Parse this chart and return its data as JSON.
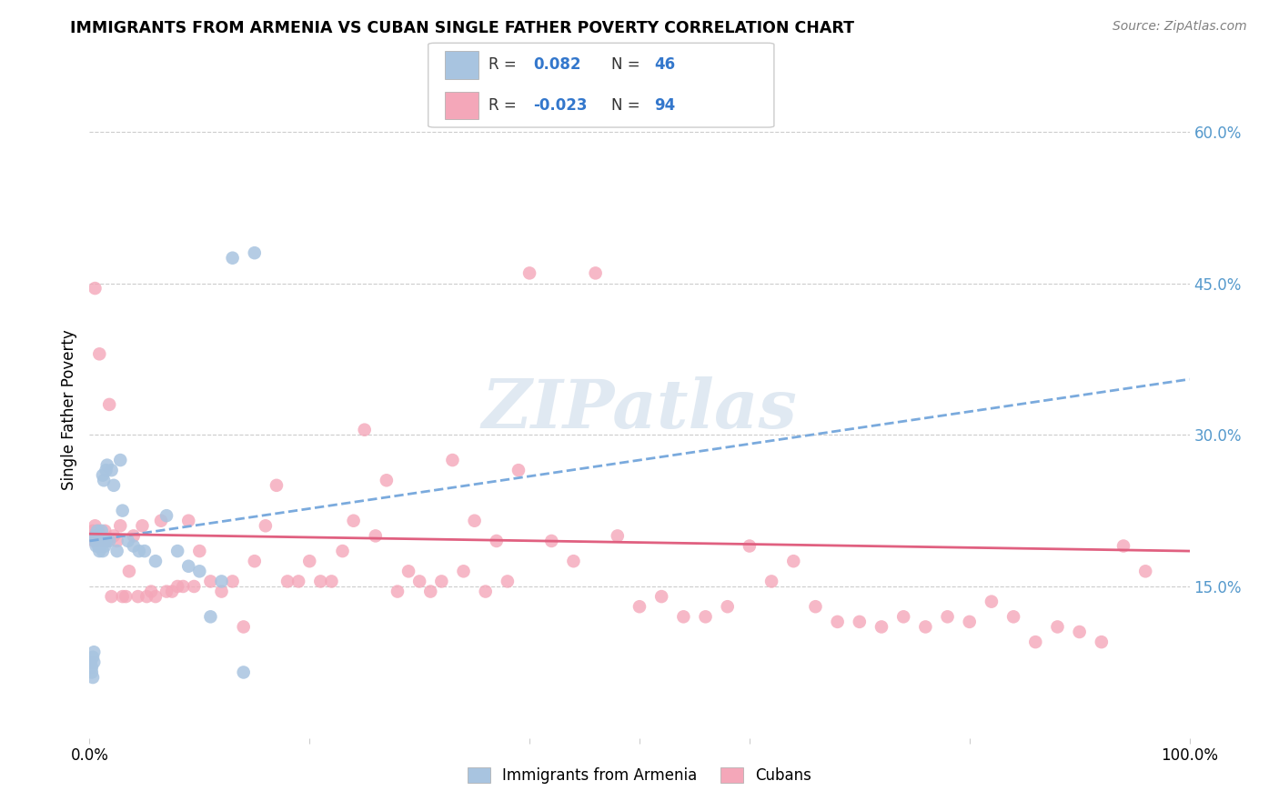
{
  "title": "IMMIGRANTS FROM ARMENIA VS CUBAN SINGLE FATHER POVERTY CORRELATION CHART",
  "source": "Source: ZipAtlas.com",
  "ylabel": "Single Father Poverty",
  "xlim": [
    0.0,
    1.0
  ],
  "ylim": [
    0.0,
    0.65
  ],
  "yticks_right": [
    0.15,
    0.3,
    0.45,
    0.6
  ],
  "ytick_right_labels": [
    "15.0%",
    "30.0%",
    "45.0%",
    "60.0%"
  ],
  "color_armenia": "#a8c4e0",
  "color_cuba": "#f4a7b9",
  "trendline_armenia_color": "#7aaadd",
  "trendline_cuba_color": "#e06080",
  "watermark": "ZIPatlas",
  "background_color": "#ffffff",
  "grid_color": "#cccccc",
  "armenia_x": [
    0.001,
    0.002,
    0.002,
    0.003,
    0.003,
    0.004,
    0.004,
    0.005,
    0.005,
    0.006,
    0.006,
    0.007,
    0.007,
    0.008,
    0.008,
    0.009,
    0.01,
    0.01,
    0.011,
    0.012,
    0.012,
    0.013,
    0.014,
    0.015,
    0.015,
    0.016,
    0.018,
    0.02,
    0.022,
    0.025,
    0.028,
    0.03,
    0.035,
    0.04,
    0.045,
    0.05,
    0.06,
    0.07,
    0.08,
    0.09,
    0.1,
    0.11,
    0.12,
    0.13,
    0.14,
    0.15
  ],
  "armenia_y": [
    0.075,
    0.07,
    0.065,
    0.08,
    0.06,
    0.075,
    0.085,
    0.195,
    0.2,
    0.19,
    0.2,
    0.195,
    0.205,
    0.19,
    0.2,
    0.185,
    0.19,
    0.195,
    0.205,
    0.185,
    0.26,
    0.255,
    0.19,
    0.195,
    0.265,
    0.27,
    0.195,
    0.265,
    0.25,
    0.185,
    0.275,
    0.225,
    0.195,
    0.19,
    0.185,
    0.185,
    0.175,
    0.22,
    0.185,
    0.17,
    0.165,
    0.12,
    0.155,
    0.475,
    0.065,
    0.48
  ],
  "cuba_x": [
    0.002,
    0.003,
    0.004,
    0.005,
    0.006,
    0.007,
    0.008,
    0.009,
    0.01,
    0.012,
    0.014,
    0.016,
    0.018,
    0.02,
    0.022,
    0.025,
    0.028,
    0.03,
    0.033,
    0.036,
    0.04,
    0.044,
    0.048,
    0.052,
    0.056,
    0.06,
    0.065,
    0.07,
    0.075,
    0.08,
    0.085,
    0.09,
    0.095,
    0.1,
    0.11,
    0.12,
    0.13,
    0.14,
    0.15,
    0.16,
    0.17,
    0.18,
    0.19,
    0.2,
    0.21,
    0.22,
    0.23,
    0.24,
    0.25,
    0.26,
    0.27,
    0.28,
    0.29,
    0.3,
    0.31,
    0.32,
    0.33,
    0.34,
    0.35,
    0.36,
    0.37,
    0.38,
    0.39,
    0.4,
    0.42,
    0.44,
    0.46,
    0.48,
    0.5,
    0.52,
    0.54,
    0.56,
    0.58,
    0.6,
    0.62,
    0.64,
    0.66,
    0.68,
    0.7,
    0.72,
    0.74,
    0.76,
    0.78,
    0.8,
    0.82,
    0.84,
    0.86,
    0.88,
    0.9,
    0.92,
    0.94,
    0.96,
    0.005,
    0.015
  ],
  "cuba_y": [
    0.2,
    0.205,
    0.195,
    0.21,
    0.2,
    0.195,
    0.205,
    0.38,
    0.2,
    0.195,
    0.205,
    0.195,
    0.33,
    0.14,
    0.2,
    0.195,
    0.21,
    0.14,
    0.14,
    0.165,
    0.2,
    0.14,
    0.21,
    0.14,
    0.145,
    0.14,
    0.215,
    0.145,
    0.145,
    0.15,
    0.15,
    0.215,
    0.15,
    0.185,
    0.155,
    0.145,
    0.155,
    0.11,
    0.175,
    0.21,
    0.25,
    0.155,
    0.155,
    0.175,
    0.155,
    0.155,
    0.185,
    0.215,
    0.305,
    0.2,
    0.255,
    0.145,
    0.165,
    0.155,
    0.145,
    0.155,
    0.275,
    0.165,
    0.215,
    0.145,
    0.195,
    0.155,
    0.265,
    0.46,
    0.195,
    0.175,
    0.46,
    0.2,
    0.13,
    0.14,
    0.12,
    0.12,
    0.13,
    0.19,
    0.155,
    0.175,
    0.13,
    0.115,
    0.115,
    0.11,
    0.12,
    0.11,
    0.12,
    0.115,
    0.135,
    0.12,
    0.095,
    0.11,
    0.105,
    0.095,
    0.19,
    0.165,
    0.445,
    0.195
  ],
  "trendline_armenia_start_x": 0.0,
  "trendline_armenia_start_y": 0.195,
  "trendline_armenia_end_x": 1.0,
  "trendline_armenia_end_y": 0.355,
  "trendline_cuba_start_x": 0.0,
  "trendline_cuba_start_y": 0.202,
  "trendline_cuba_end_x": 1.0,
  "trendline_cuba_end_y": 0.185
}
